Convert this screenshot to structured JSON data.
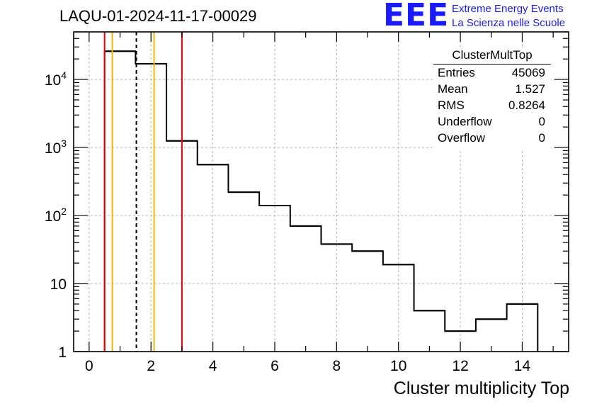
{
  "header": {
    "run_id": "LAQU-01-2024-11-17-00029",
    "logo_text": "EEE",
    "logo_line1": "Extreme Energy Events",
    "logo_line2": "La Scienza nelle Scuole"
  },
  "stats": {
    "name": "ClusterMultTop",
    "rows": [
      {
        "label": "Entries",
        "value": "45069"
      },
      {
        "label": "Mean",
        "value": "1.527"
      },
      {
        "label": "RMS",
        "value": "0.8264"
      },
      {
        "label": "Underflow",
        "value": "0"
      },
      {
        "label": "Overflow",
        "value": "0"
      }
    ]
  },
  "colors": {
    "histogram": "#000000",
    "grid": "#b4b4b4",
    "red_marker": "#e8000b",
    "orange_marker": "#f5b400",
    "mean_marker": "#000000"
  },
  "chart_data": {
    "type": "histogram",
    "title": "",
    "xlabel": "Cluster multiplicity Top",
    "ylabel": "",
    "y_scale": "log",
    "grid": true,
    "xlim": [
      -0.5,
      15.5
    ],
    "ylim": [
      1,
      50000
    ],
    "x_ticks": [
      0,
      2,
      4,
      6,
      8,
      10,
      12,
      14
    ],
    "x_tick_labels": [
      "0",
      "2",
      "4",
      "6",
      "8",
      "10",
      "12",
      "14"
    ],
    "y_ticks": [
      1,
      10,
      100,
      1000,
      10000
    ],
    "y_tick_labels": [
      {
        "base": "1",
        "exp": ""
      },
      {
        "base": "10",
        "exp": ""
      },
      {
        "base": "10",
        "exp": "2"
      },
      {
        "base": "10",
        "exp": "3"
      },
      {
        "base": "10",
        "exp": "4"
      }
    ],
    "bin_width": 1,
    "bin_centers": [
      1,
      2,
      3,
      4,
      5,
      6,
      7,
      8,
      9,
      10,
      11,
      12,
      13,
      14
    ],
    "counts": [
      26000,
      17000,
      1250,
      560,
      220,
      140,
      70,
      38,
      30,
      19,
      4,
      2,
      3,
      5
    ],
    "markers": [
      {
        "x": 0.5,
        "color": "red",
        "style": "solid"
      },
      {
        "x": 0.75,
        "color": "orange",
        "style": "solid"
      },
      {
        "x": 1.527,
        "color": "black",
        "style": "dashed"
      },
      {
        "x": 2.1,
        "color": "orange",
        "style": "solid"
      },
      {
        "x": 3.0,
        "color": "red",
        "style": "solid"
      }
    ]
  }
}
